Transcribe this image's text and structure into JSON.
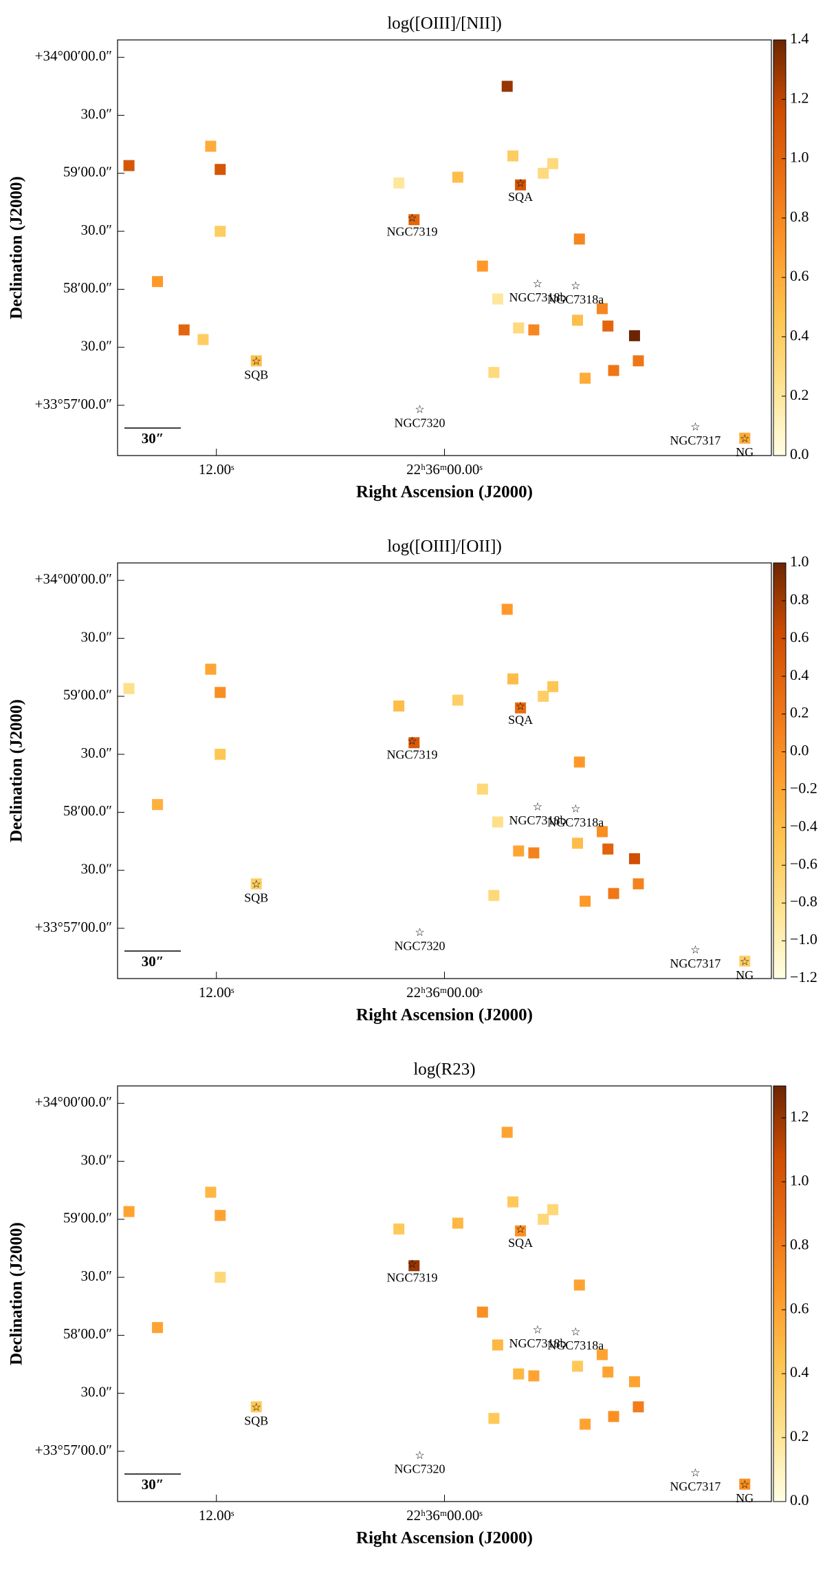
{
  "chart_data": [
    {
      "type": "map",
      "title": "log([OIII]/[NII])",
      "xlabel": "Right Ascension (J2000)",
      "ylabel": "Declination (J2000)",
      "xlim": [
        17.2,
        -17.2
      ],
      "ylim": [
        -26,
        189
      ],
      "xticks": [
        {
          "value": 12,
          "label": "12.00ˢ"
        },
        {
          "value": 0,
          "label": "22ʰ36ᵐ00.00ˢ"
        }
      ],
      "yticks": [
        {
          "value": 180,
          "label": "+34°00′00.0″"
        },
        {
          "value": 150,
          "label": "30.0″"
        },
        {
          "value": 120,
          "label": "59′00.0″"
        },
        {
          "value": 90,
          "label": "30.0″"
        },
        {
          "value": 60,
          "label": "58′00.0″"
        },
        {
          "value": 30,
          "label": "30.0″"
        },
        {
          "value": 0,
          "label": "+33°57′00.0″"
        }
      ],
      "scalebar_label": "30″",
      "colormap": [
        "#ffffe5",
        "#fee391",
        "#fec44f",
        "#fe9929",
        "#ec7014",
        "#cc4c02",
        "#6b2503"
      ],
      "clim": [
        0,
        1.4
      ],
      "cticks": [
        {
          "value": 0,
          "label": "0.0"
        },
        {
          "value": 0.2,
          "label": "0.2"
        },
        {
          "value": 0.4,
          "label": "0.4"
        },
        {
          "value": 0.6,
          "label": "0.6"
        },
        {
          "value": 0.8,
          "label": "0.8"
        },
        {
          "value": 1,
          "label": "1.0"
        },
        {
          "value": 1.2,
          "label": "1.2"
        },
        {
          "value": 1.4,
          "label": "1.4"
        }
      ],
      "sources": [
        {
          "name": "SQA",
          "x": -4.0,
          "y": 115
        },
        {
          "name": "NGC7319",
          "x": 1.7,
          "y": 97
        },
        {
          "name": "NGC7318b",
          "x": -4.9,
          "y": 63
        },
        {
          "name": "NGC7318a",
          "x": -6.9,
          "y": 62
        },
        {
          "name": "SQB",
          "x": 9.9,
          "y": 23
        },
        {
          "name": "NGC7320",
          "x": 1.3,
          "y": -2
        },
        {
          "name": "NGC7317",
          "x": -13.2,
          "y": -11
        },
        {
          "name": "NG",
          "x": -15.8,
          "y": -17
        }
      ],
      "x": [
        -3.3,
        16.6,
        12.3,
        11.8,
        11.8,
        15.1,
        13.7,
        12.7,
        9.9,
        1.6,
        2.4,
        -4.0,
        -5.2,
        -3.6,
        -5.7,
        -0.7,
        -7.1,
        -2.0,
        -2.8,
        -3.9,
        -4.7,
        -7.0,
        -8.3,
        -8.6,
        -10.0,
        -10.2,
        -8.9,
        -7.4,
        -2.6,
        -15.8
      ],
      "y": [
        165,
        124,
        134,
        122,
        90,
        64,
        39,
        34,
        23,
        96,
        115,
        114,
        120,
        129,
        125,
        118,
        86,
        72,
        55,
        40,
        39,
        44,
        50,
        41,
        36,
        23,
        18,
        14,
        17,
        -17
      ],
      "values": [
        1.3,
        1.1,
        0.6,
        1.1,
        0.4,
        0.7,
        1.0,
        0.4,
        0.5,
        1.0,
        0.2,
        1.1,
        0.3,
        0.4,
        0.3,
        0.5,
        0.8,
        0.7,
        0.2,
        0.3,
        0.8,
        0.5,
        0.8,
        1.0,
        1.4,
        0.9,
        0.9,
        0.6,
        0.3,
        0.6
      ]
    },
    {
      "type": "map",
      "title": "log([OIII]/[OII])",
      "xlabel": "Right Ascension (J2000)",
      "ylabel": "Declination (J2000)",
      "xlim": [
        17.2,
        -17.2
      ],
      "ylim": [
        -26,
        189
      ],
      "xticks": [
        {
          "value": 12,
          "label": "12.00ˢ"
        },
        {
          "value": 0,
          "label": "22ʰ36ᵐ00.00ˢ"
        }
      ],
      "yticks": [
        {
          "value": 180,
          "label": "+34°00′00.0″"
        },
        {
          "value": 150,
          "label": "30.0″"
        },
        {
          "value": 120,
          "label": "59′00.0″"
        },
        {
          "value": 90,
          "label": "30.0″"
        },
        {
          "value": 60,
          "label": "58′00.0″"
        },
        {
          "value": 30,
          "label": "30.0″"
        },
        {
          "value": 0,
          "label": "+33°57′00.0″"
        }
      ],
      "scalebar_label": "30″",
      "colormap": [
        "#ffffe5",
        "#fee391",
        "#fec44f",
        "#fe9929",
        "#ec7014",
        "#cc4c02",
        "#6b2503"
      ],
      "clim": [
        -1.2,
        1.0
      ],
      "cticks": [
        {
          "value": 1,
          "label": "1.0"
        },
        {
          "value": 0.8,
          "label": "0.8"
        },
        {
          "value": 0.6,
          "label": "0.6"
        },
        {
          "value": 0.4,
          "label": "0.4"
        },
        {
          "value": 0.2,
          "label": "0.2"
        },
        {
          "value": 0,
          "label": "0.0"
        },
        {
          "value": -0.2,
          "label": "−0.2"
        },
        {
          "value": -0.4,
          "label": "−0.4"
        },
        {
          "value": -0.6,
          "label": "−0.6"
        },
        {
          "value": -0.8,
          "label": "−0.8"
        },
        {
          "value": -1,
          "label": "−1.0"
        },
        {
          "value": -1.2,
          "label": "−1.2"
        }
      ],
      "sources": [
        {
          "name": "SQA",
          "x": -4.0,
          "y": 115
        },
        {
          "name": "NGC7319",
          "x": 1.7,
          "y": 97
        },
        {
          "name": "NGC7318b",
          "x": -4.9,
          "y": 63
        },
        {
          "name": "NGC7318a",
          "x": -6.9,
          "y": 62
        },
        {
          "name": "SQB",
          "x": 9.9,
          "y": 23
        },
        {
          "name": "NGC7320",
          "x": 1.3,
          "y": -2
        },
        {
          "name": "NGC7317",
          "x": -13.2,
          "y": -11
        },
        {
          "name": "NG",
          "x": -15.8,
          "y": -17
        }
      ],
      "x": [
        -3.3,
        16.6,
        12.3,
        11.8,
        11.8,
        15.1,
        9.9,
        1.6,
        2.4,
        -4.0,
        -5.2,
        -3.6,
        -5.7,
        -0.7,
        -7.1,
        -2.0,
        -2.8,
        -3.9,
        -4.7,
        -7.0,
        -8.3,
        -8.6,
        -10.0,
        -10.2,
        -8.9,
        -7.4,
        -2.6,
        -15.8
      ],
      "y": [
        165,
        124,
        134,
        122,
        90,
        64,
        23,
        96,
        115,
        114,
        120,
        129,
        125,
        118,
        86,
        72,
        55,
        40,
        39,
        44,
        50,
        41,
        36,
        23,
        18,
        14,
        17,
        -17
      ],
      "values": [
        -0.1,
        -0.8,
        -0.2,
        0.0,
        -0.5,
        -0.3,
        -0.6,
        0.5,
        -0.4,
        0.3,
        -0.6,
        -0.4,
        -0.5,
        -0.6,
        -0.1,
        -0.7,
        -0.8,
        -0.2,
        0.1,
        -0.4,
        0.0,
        0.4,
        0.6,
        0.1,
        0.2,
        -0.1,
        -0.7,
        -0.6
      ]
    },
    {
      "type": "map",
      "title": "log(R23)",
      "xlabel": "Right Ascension (J2000)",
      "ylabel": "Declination (J2000)",
      "xlim": [
        17.2,
        -17.2
      ],
      "ylim": [
        -26,
        189
      ],
      "xticks": [
        {
          "value": 12,
          "label": "12.00ˢ"
        },
        {
          "value": 0,
          "label": "22ʰ36ᵐ00.00ˢ"
        }
      ],
      "yticks": [
        {
          "value": 180,
          "label": "+34°00′00.0″"
        },
        {
          "value": 150,
          "label": "30.0″"
        },
        {
          "value": 120,
          "label": "59′00.0″"
        },
        {
          "value": 90,
          "label": "30.0″"
        },
        {
          "value": 60,
          "label": "58′00.0″"
        },
        {
          "value": 30,
          "label": "30.0″"
        },
        {
          "value": 0,
          "label": "+33°57′00.0″"
        }
      ],
      "scalebar_label": "30″",
      "colormap": [
        "#ffffe5",
        "#fee391",
        "#fec44f",
        "#fe9929",
        "#ec7014",
        "#cc4c02",
        "#6b2503"
      ],
      "clim": [
        0,
        1.3
      ],
      "cticks": [
        {
          "value": 0,
          "label": "0.0"
        },
        {
          "value": 0.2,
          "label": "0.2"
        },
        {
          "value": 0.4,
          "label": "0.4"
        },
        {
          "value": 0.6,
          "label": "0.6"
        },
        {
          "value": 0.8,
          "label": "0.8"
        },
        {
          "value": 1,
          "label": "1.0"
        },
        {
          "value": 1.2,
          "label": "1.2"
        }
      ],
      "sources": [
        {
          "name": "SQA",
          "x": -4.0,
          "y": 115
        },
        {
          "name": "NGC7319",
          "x": 1.7,
          "y": 97
        },
        {
          "name": "NGC7318b",
          "x": -4.9,
          "y": 63
        },
        {
          "name": "NGC7318a",
          "x": -6.9,
          "y": 62
        },
        {
          "name": "SQB",
          "x": 9.9,
          "y": 23
        },
        {
          "name": "NGC7320",
          "x": 1.3,
          "y": -2
        },
        {
          "name": "NGC7317",
          "x": -13.2,
          "y": -11
        },
        {
          "name": "NG",
          "x": -15.8,
          "y": -17
        }
      ],
      "x": [
        -3.3,
        16.6,
        12.3,
        11.8,
        11.8,
        15.1,
        9.9,
        1.6,
        2.4,
        -4.0,
        -5.2,
        -3.6,
        -5.7,
        -0.7,
        -7.1,
        -2.0,
        -2.8,
        -3.9,
        -4.7,
        -7.0,
        -8.3,
        -8.6,
        -10.0,
        -10.2,
        -8.9,
        -7.4,
        -2.6,
        -15.8
      ],
      "y": [
        165,
        124,
        134,
        122,
        90,
        64,
        23,
        96,
        115,
        114,
        120,
        129,
        125,
        118,
        86,
        72,
        55,
        40,
        39,
        44,
        50,
        41,
        36,
        23,
        18,
        14,
        17,
        -17
      ],
      "values": [
        0.6,
        0.6,
        0.5,
        0.6,
        0.3,
        0.6,
        0.4,
        1.2,
        0.4,
        0.7,
        0.3,
        0.4,
        0.3,
        0.5,
        0.6,
        0.7,
        0.5,
        0.5,
        0.6,
        0.4,
        0.6,
        0.6,
        0.6,
        0.8,
        0.7,
        0.6,
        0.4,
        0.7
      ]
    }
  ]
}
